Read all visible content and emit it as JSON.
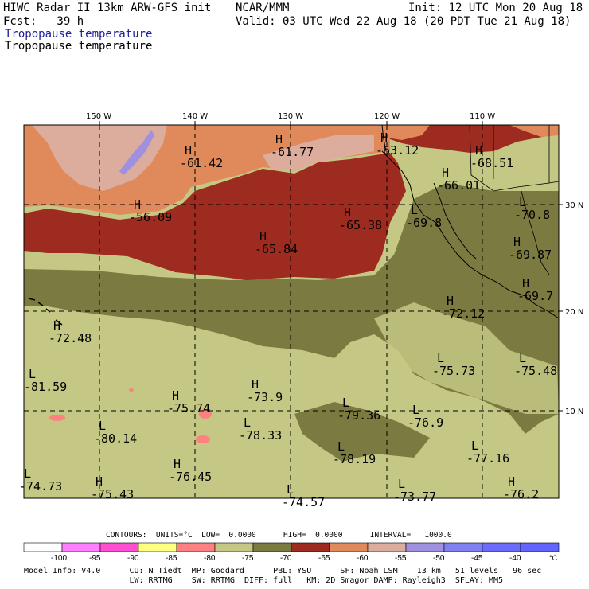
{
  "header": {
    "title_line": "HIWC Radar II 13km ARW-GFS init",
    "center": "NCAR/MMM",
    "init": "Init: 12 UTC Mon 20 Aug 18",
    "fcst": "Fcst:   39 h",
    "valid": "Valid: 03 UTC Wed 22 Aug 18 (20 PDT Tue 21 Aug 18)",
    "field_line_1": "Tropopause temperature",
    "field_line_2": "Tropopause temperature"
  },
  "axes": {
    "lon_labels": [
      "150 W",
      "140 W",
      "130 W",
      "120 W",
      "110 W"
    ],
    "lat_labels": [
      "30 N",
      "20 N",
      "10 N"
    ]
  },
  "extrema": [
    {
      "type": "H",
      "value": "-63.12"
    },
    {
      "type": "H",
      "value": "-68.51"
    },
    {
      "type": "H",
      "value": "-61.77"
    },
    {
      "type": "H",
      "value": "-61.42"
    },
    {
      "type": "H",
      "value": "-66.01"
    },
    {
      "type": "H",
      "value": "-56.09"
    },
    {
      "type": "H",
      "value": "-65.38"
    },
    {
      "type": "L",
      "value": "-69.8"
    },
    {
      "type": "L",
      "value": "-70.8"
    },
    {
      "type": "H",
      "value": "-65.84"
    },
    {
      "type": "H",
      "value": "-69.87"
    },
    {
      "type": "H",
      "value": "-69.7"
    },
    {
      "type": "H",
      "value": "-72.12"
    },
    {
      "type": "H",
      "value": "-72.48"
    },
    {
      "type": "L",
      "value": "-75.73"
    },
    {
      "type": "L",
      "value": "-75.48"
    },
    {
      "type": "L",
      "value": "-81.59"
    },
    {
      "type": "H",
      "value": "-73.9"
    },
    {
      "type": "H",
      "value": "-75.74"
    },
    {
      "type": "L",
      "value": "-79.36"
    },
    {
      "type": "L",
      "value": "-76.9"
    },
    {
      "type": "L",
      "value": "-78.33"
    },
    {
      "type": "L",
      "value": "-80.14"
    },
    {
      "type": "L",
      "value": "-78.19"
    },
    {
      "type": "L",
      "value": "-77.16"
    },
    {
      "type": "H",
      "value": "-76.45"
    },
    {
      "type": "L",
      "value": "-74.73"
    },
    {
      "type": "H",
      "value": "-75.43"
    },
    {
      "type": "L",
      "value": "-74.57"
    },
    {
      "type": "L",
      "value": "-73.77"
    },
    {
      "type": "H",
      "value": "-76.2"
    }
  ],
  "contour_info": "CONTOURS:  UNITS=°C  LOW=  0.0000      HIGH=  0.0000      INTERVAL=   1000.0",
  "colorbar": {
    "colors": [
      "#ffffff",
      "#ff80ff",
      "#ff4fd0",
      "#ffff80",
      "#ff8080",
      "#c5c884",
      "#7b7b41",
      "#9e2b20",
      "#e08a5c",
      "#dcac9c",
      "#a090e0",
      "#8080f0",
      "#6c6cfa",
      "#6464ff"
    ],
    "labels": [
      "-100",
      "-95",
      "-90",
      "-85",
      "-80",
      "-75",
      "-70",
      "-65",
      "-60",
      "-55",
      "-50",
      "-45",
      "-40"
    ],
    "unit": "°C"
  },
  "footer": {
    "line1": "Model Info: V4.0      CU: N_Tiedt  MP: Goddard      PBL: YSU      SF: Noah LSM    13 km   51 levels   96 sec",
    "line2": "                      LW: RRTMG    SW: RRTMG  DIFF: full   KM: 2D Smagor DAMP: Rayleigh3  SFLAY: MM5"
  }
}
